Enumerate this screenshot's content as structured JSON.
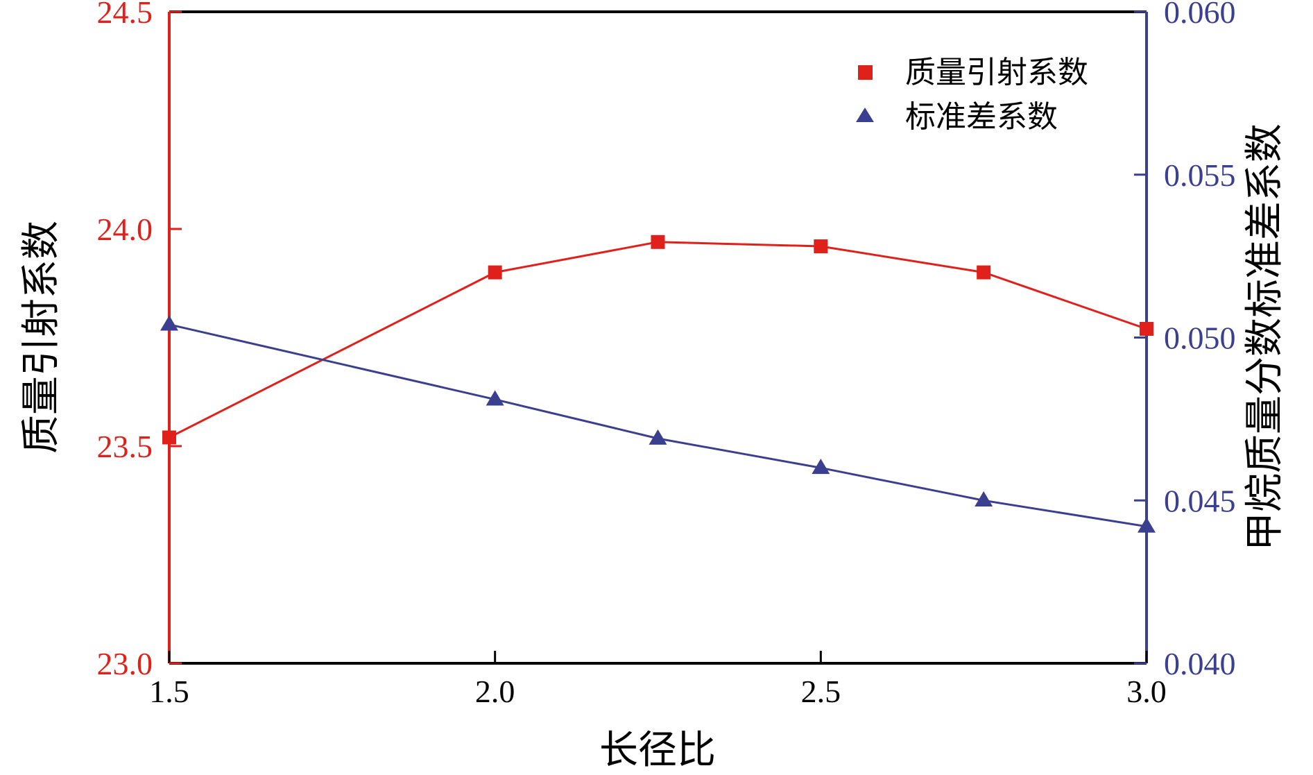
{
  "chart_data": {
    "type": "line",
    "x": [
      1.5,
      2.0,
      2.25,
      2.5,
      2.75,
      3.0
    ],
    "xlabel": "长径比",
    "xlim": [
      1.5,
      3.0
    ],
    "xticks": [
      "1.5",
      "2.0",
      "2.5",
      "3.0"
    ],
    "ylabel_left": "质量引射系数",
    "ylim_left": [
      23.0,
      24.5
    ],
    "yticks_left": [
      "23.0",
      "23.5",
      "24.0",
      "24.5"
    ],
    "ylabel_right": "甲烷质量分数标准差系数",
    "ylim_right": [
      0.04,
      0.06
    ],
    "yticks_right": [
      "0.040",
      "0.045",
      "0.050",
      "0.055",
      "0.060"
    ],
    "grid": false,
    "legend_position": "top-right",
    "series": [
      {
        "name": "质量引射系数",
        "axis": "left",
        "marker": "square",
        "color": "#e0201a",
        "values": [
          23.52,
          23.9,
          23.97,
          23.96,
          23.9,
          23.77
        ]
      },
      {
        "name": "标准差系数",
        "axis": "right",
        "marker": "triangle",
        "color": "#3a3f8f",
        "values": [
          0.0504,
          0.0481,
          0.0469,
          0.046,
          0.045,
          0.0442
        ]
      }
    ]
  }
}
